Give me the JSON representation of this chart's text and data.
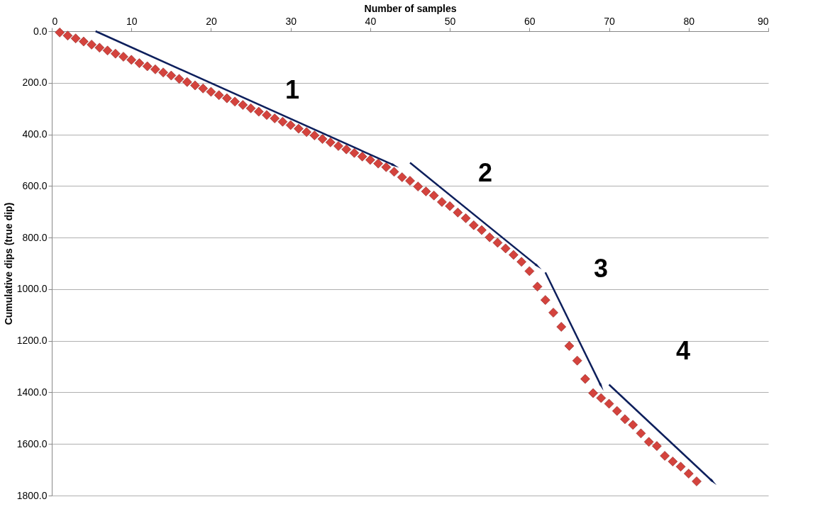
{
  "chart_data": {
    "type": "scatter",
    "xlabel": "Number of samples",
    "ylabel": "Cumulative dips (true dip)",
    "x": [
      1,
      2,
      3,
      4,
      5,
      6,
      7,
      8,
      9,
      10,
      11,
      12,
      13,
      14,
      15,
      16,
      17,
      18,
      19,
      20,
      21,
      22,
      23,
      24,
      25,
      26,
      27,
      28,
      29,
      30,
      31,
      32,
      33,
      34,
      35,
      36,
      37,
      38,
      39,
      40,
      41,
      42,
      43,
      44,
      45,
      46,
      47,
      48,
      49,
      50,
      51,
      52,
      53,
      54,
      55,
      56,
      57,
      58,
      59,
      60,
      61,
      62,
      63,
      64,
      65,
      66,
      67,
      68,
      69,
      70,
      71,
      72,
      73,
      74,
      75,
      76,
      77,
      78,
      79,
      80,
      81
    ],
    "series": [
      {
        "color": "#d4433d",
        "values": [
          5,
          17,
          28,
          40,
          52,
          64,
          75,
          87,
          99,
          111,
          124,
          136,
          148,
          160,
          172,
          185,
          197,
          210,
          222,
          235,
          248,
          260,
          273,
          286,
          299,
          312,
          325,
          338,
          351,
          364,
          378,
          391,
          404,
          418,
          431,
          445,
          458,
          472,
          486,
          499,
          513,
          527,
          545,
          566,
          580,
          602,
          621,
          637,
          662,
          678,
          703,
          725,
          752,
          771,
          799,
          820,
          842,
          867,
          894,
          930,
          990,
          1042,
          1091,
          1146,
          1220,
          1277,
          1348,
          1403,
          1422,
          1444,
          1472,
          1504,
          1526,
          1559,
          1592,
          1608,
          1646,
          1668,
          1688,
          1715,
          1745
        ]
      }
    ],
    "xlim": [
      0,
      90
    ],
    "xticks": [
      0,
      10,
      20,
      30,
      40,
      50,
      60,
      70,
      80,
      90
    ],
    "ylim": [
      1800,
      0
    ],
    "yticks": [
      {
        "value": 0,
        "label": "0.0"
      },
      {
        "value": 200,
        "label": "200.0"
      },
      {
        "value": 400,
        "label": "400.0"
      },
      {
        "value": 600,
        "label": "600.0"
      },
      {
        "value": 800,
        "label": "800.0"
      },
      {
        "value": 1000,
        "label": "1000.0"
      },
      {
        "value": 1200,
        "label": "1200.0"
      },
      {
        "value": 1400,
        "label": "1400.0"
      },
      {
        "value": 1600,
        "label": "1600.0"
      },
      {
        "value": 1800,
        "label": "1800.0"
      }
    ],
    "grid": "y",
    "marker": "diamond",
    "legend": false,
    "annotations": [
      "1",
      "2",
      "3",
      "4"
    ]
  }
}
